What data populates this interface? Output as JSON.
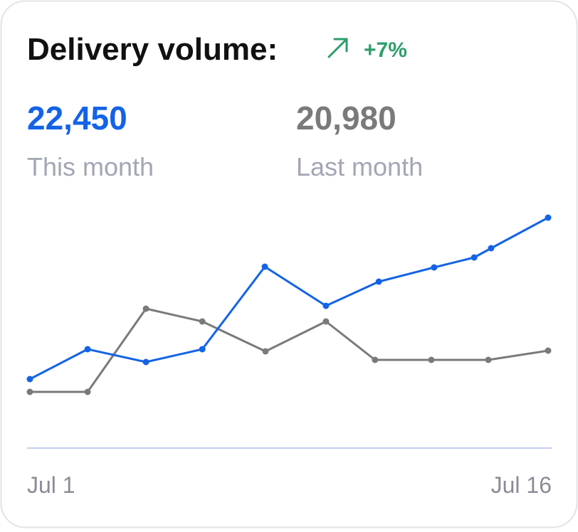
{
  "chart_data": {
    "type": "line",
    "title": "Delivery volume:",
    "change": "+7%",
    "xlim": [
      1,
      16
    ],
    "xticks": [
      {
        "value": 1,
        "label": "Jul 1"
      },
      {
        "value": 16,
        "label": "Jul 16"
      }
    ],
    "ylim": [
      0,
      330
    ],
    "series": [
      {
        "name": "This month",
        "total": "22,450",
        "color": "#1463e6",
        "x": [
          1,
          2.67,
          4.36,
          5.99,
          7.8,
          9.57,
          11.1,
          12.7,
          13.86,
          14.35,
          16
        ],
        "values": [
          97,
          139,
          121,
          139,
          255,
          200,
          234,
          254,
          268,
          281,
          324
        ]
      },
      {
        "name": "Last month",
        "total": "20,980",
        "color": "#7a7a7a",
        "x": [
          1,
          2.67,
          4.36,
          5.99,
          7.82,
          9.57,
          10.99,
          12.62,
          14.27,
          16
        ],
        "values": [
          79,
          79,
          196,
          178,
          136,
          178,
          124,
          124,
          124,
          137
        ]
      }
    ]
  }
}
